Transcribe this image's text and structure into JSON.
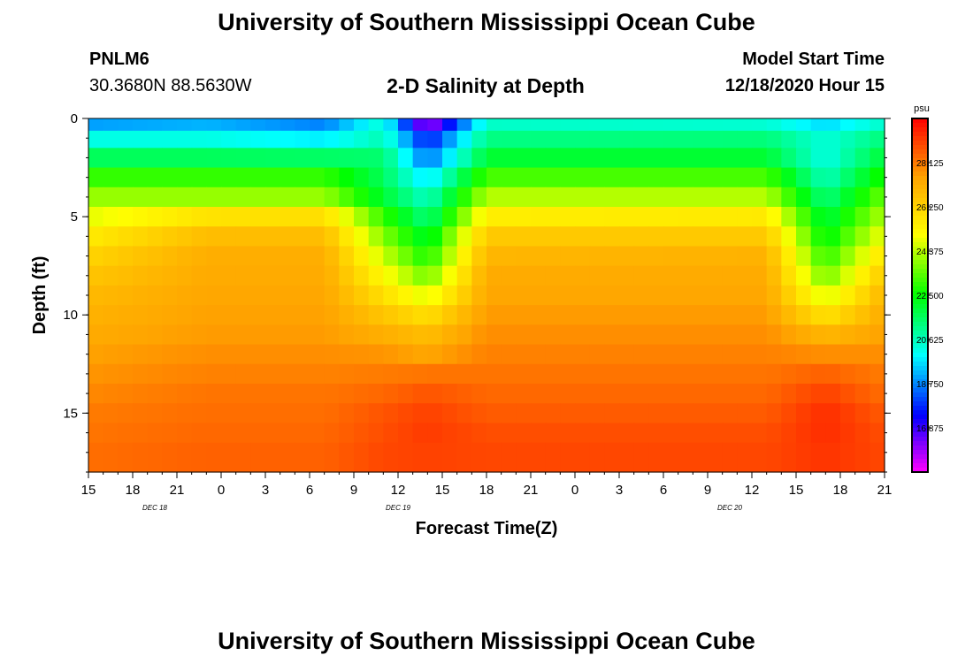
{
  "header": {
    "title": "University of Southern Mississippi Ocean Cube",
    "station": "PNLM6",
    "coords": "30.3680N 88.5630W",
    "chart_title": "2-D Salinity at Depth",
    "model_start_label": "Model Start Time",
    "model_start_value": "12/18/2020 Hour 15"
  },
  "footer": {
    "title": "University of Southern Mississippi Ocean Cube"
  },
  "chart_data": {
    "type": "heatmap",
    "title": "2-D Salinity at Depth",
    "xlabel": "Forecast Time(Z)",
    "ylabel": "Depth (ft)",
    "x_range_hours": [
      0,
      54
    ],
    "x_ticks": [
      {
        "h": 0,
        "label": "15"
      },
      {
        "h": 3,
        "label": "18"
      },
      {
        "h": 6,
        "label": "21"
      },
      {
        "h": 9,
        "label": "0"
      },
      {
        "h": 12,
        "label": "3"
      },
      {
        "h": 15,
        "label": "6"
      },
      {
        "h": 18,
        "label": "9"
      },
      {
        "h": 21,
        "label": "12"
      },
      {
        "h": 24,
        "label": "15"
      },
      {
        "h": 27,
        "label": "18"
      },
      {
        "h": 30,
        "label": "21"
      },
      {
        "h": 33,
        "label": "0"
      },
      {
        "h": 36,
        "label": "3"
      },
      {
        "h": 39,
        "label": "6"
      },
      {
        "h": 42,
        "label": "9"
      },
      {
        "h": 45,
        "label": "12"
      },
      {
        "h": 48,
        "label": "15"
      },
      {
        "h": 51,
        "label": "18"
      },
      {
        "h": 54,
        "label": "21"
      }
    ],
    "date_labels": [
      {
        "h": 4.5,
        "label": "DEC 18"
      },
      {
        "h": 21,
        "label": "DEC 19"
      },
      {
        "h": 43.5,
        "label": "DEC 20"
      }
    ],
    "y_range_ft": [
      0,
      18
    ],
    "y_ticks": [
      0,
      5,
      10,
      15
    ],
    "colorbar": {
      "unit": "psu",
      "min": 15.0,
      "max": 30.0,
      "tick_labels": [
        "28.125",
        "26.250",
        "24.375",
        "22.500",
        "20.625",
        "18.750",
        "16.875"
      ]
    },
    "depth_levels_ft": [
      0.25,
      1.0,
      2.0,
      3.0,
      4.0,
      5.0,
      6.0,
      7.0,
      8.0,
      9.0,
      10.0,
      11.0,
      12.0,
      13.0,
      14.0,
      15.0,
      16.0,
      17.0
    ],
    "salinity_grid_rows": [
      [
        19.0,
        19.2,
        18.7,
        20.4,
        15.8,
        20.5,
        20.4,
        19.6,
        20.5
      ],
      [
        20.2,
        20.2,
        19.8,
        20.7,
        17.6,
        21.2,
        21.3,
        20.3,
        21.3
      ],
      [
        21.6,
        21.6,
        21.5,
        21.4,
        18.5,
        22.0,
        22.0,
        20.2,
        22.0
      ],
      [
        23.0,
        23.0,
        23.0,
        21.6,
        19.6,
        23.2,
        23.2,
        20.6,
        22.8
      ],
      [
        24.0,
        24.0,
        24.0,
        22.0,
        20.5,
        24.3,
        24.3,
        21.2,
        23.6
      ],
      [
        24.8,
        25.8,
        25.9,
        23.0,
        21.2,
        25.5,
        25.6,
        21.8,
        24.3
      ],
      [
        25.6,
        26.8,
        26.8,
        23.8,
        22.0,
        26.5,
        26.5,
        22.3,
        25.0
      ],
      [
        26.2,
        27.2,
        27.2,
        24.5,
        22.7,
        27.0,
        27.1,
        22.9,
        25.8
      ],
      [
        26.6,
        27.3,
        27.3,
        25.2,
        23.6,
        27.3,
        27.3,
        23.6,
        26.5
      ],
      [
        26.9,
        27.4,
        27.4,
        25.9,
        24.7,
        27.4,
        27.4,
        24.6,
        27.0
      ],
      [
        27.1,
        27.5,
        27.5,
        26.6,
        25.9,
        27.6,
        27.6,
        25.8,
        27.3
      ],
      [
        27.3,
        27.6,
        27.6,
        27.2,
        26.8,
        27.8,
        27.8,
        27.0,
        27.5
      ],
      [
        27.5,
        27.8,
        27.8,
        27.7,
        27.4,
        28.0,
        28.0,
        27.8,
        27.8
      ],
      [
        27.7,
        28.0,
        28.0,
        28.1,
        28.2,
        28.2,
        28.2,
        28.5,
        28.1
      ],
      [
        27.9,
        28.2,
        28.2,
        28.4,
        28.7,
        28.4,
        28.4,
        29.0,
        28.3
      ],
      [
        28.1,
        28.3,
        28.3,
        28.7,
        29.0,
        28.6,
        28.6,
        29.3,
        28.6
      ],
      [
        28.2,
        28.4,
        28.4,
        28.8,
        29.1,
        28.8,
        28.8,
        29.3,
        28.8
      ],
      [
        28.3,
        28.5,
        28.5,
        28.9,
        29.0,
        28.9,
        28.9,
        29.2,
        28.9
      ]
    ],
    "salinity_grid_hours": [
      0,
      8,
      16,
      20,
      23,
      27,
      46,
      50,
      54
    ],
    "accent_colors": [
      "#ff00ff",
      "#0000ff",
      "#00ffff",
      "#00ff00",
      "#ffff00",
      "#ffa500",
      "#ff0000"
    ]
  }
}
